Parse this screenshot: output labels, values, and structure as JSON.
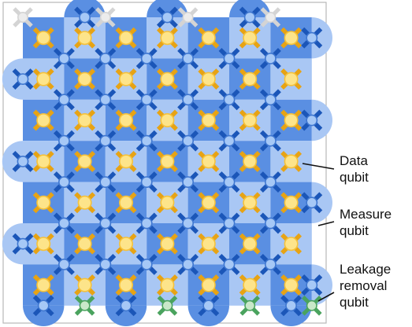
{
  "labels": {
    "data_qubit": [
      "Data",
      "qubit"
    ],
    "measure_qubit": [
      "Measure",
      "qubit"
    ],
    "leakage_qubit": [
      "Leakage",
      "removal",
      "qubit"
    ]
  },
  "colors": {
    "frame": "#b8b8b8",
    "plaquette_dark": "#5a8fe2",
    "plaquette_light": "#a9c7f4",
    "data_fill": "#fde48a",
    "data_ring": "#f6c23a",
    "data_arm": "#e7a314",
    "measure_fill": "#a6c8f6",
    "measure_ring": "#3f77d0",
    "measure_arm": "#1b56b8",
    "leak_fill": "#c9e8c9",
    "leak_arm": "#4aa35e",
    "inactive_fill": "#ececec",
    "inactive_arm": "#d4d4d4",
    "pointer": "#111111"
  },
  "icons": {
    "data": "data-qubit-icon",
    "measure": "measure-qubit-icon",
    "leakage": "leakage-removal-qubit-icon",
    "inactive": "inactive-qubit-icon"
  }
}
